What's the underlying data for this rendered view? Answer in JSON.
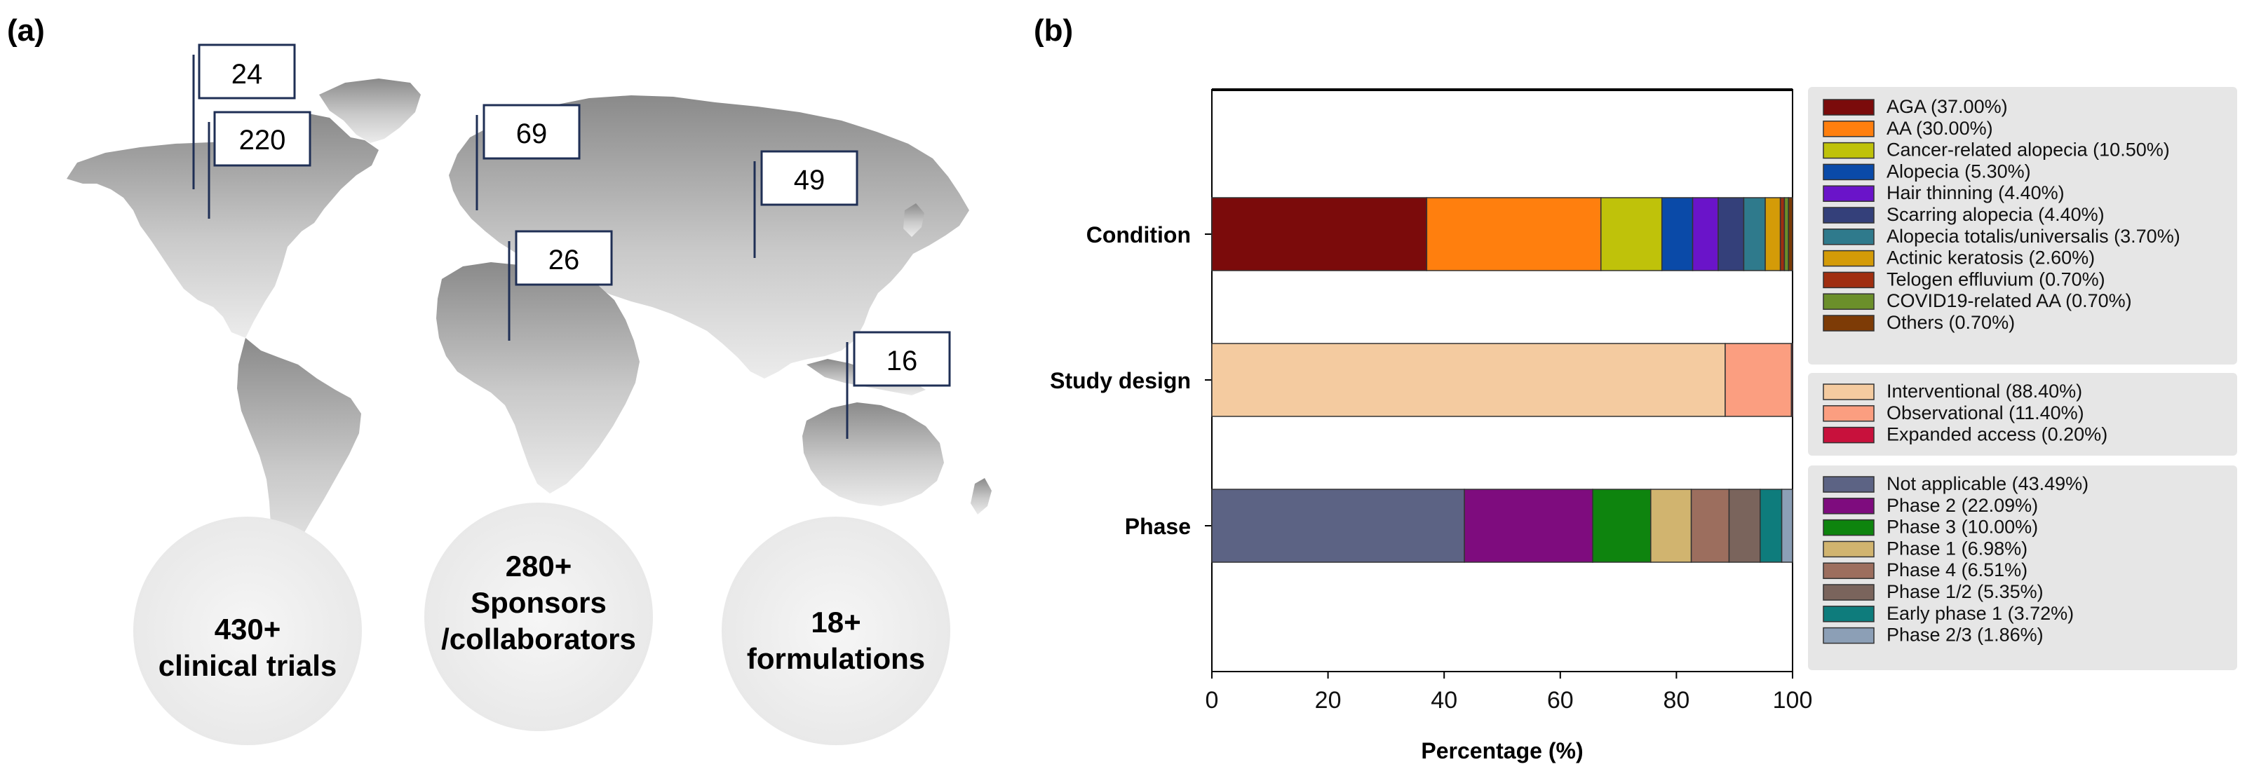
{
  "panel_a": {
    "label": "(a)",
    "flags": [
      {
        "value": "24"
      },
      {
        "value": "220"
      },
      {
        "value": "69"
      },
      {
        "value": "49"
      },
      {
        "value": "26"
      },
      {
        "value": "16"
      }
    ],
    "stats": [
      {
        "lines": [
          "430+",
          "clinical trials"
        ]
      },
      {
        "lines": [
          "280+",
          "Sponsors",
          "/collaborators"
        ]
      },
      {
        "lines": [
          "18+",
          "formulations"
        ]
      }
    ],
    "colors": {
      "map_top": "#8c8c8c",
      "map_bottom": "#e6e6e6",
      "flag_stroke": "#1f2f55",
      "stat_circle": "#efefef"
    }
  },
  "panel_b": {
    "label": "(b)"
  },
  "chart_data": {
    "type": "bar",
    "orientation": "horizontal",
    "stacked": true,
    "xlabel": "Percentage (%)",
    "ylabel": "",
    "xlim": [
      0,
      100
    ],
    "xticks": [
      0,
      20,
      40,
      60,
      80,
      100
    ],
    "categories": [
      "Condition",
      "Study design",
      "Phase"
    ],
    "groups": [
      {
        "category": "Condition",
        "segments": [
          {
            "name": "AGA (37.00%)",
            "value": 37.0,
            "color": "#7b0b0b"
          },
          {
            "name": "AA (30.00%)",
            "value": 30.0,
            "color": "#ff7f0e"
          },
          {
            "name": "Cancer-related alopecia (10.50%)",
            "value": 10.5,
            "color": "#bfc20a"
          },
          {
            "name": "Alopecia (5.30%)",
            "value": 5.3,
            "color": "#0a4aa8"
          },
          {
            "name": "Hair thinning (4.40%)",
            "value": 4.4,
            "color": "#6a14c9"
          },
          {
            "name": "Scarring alopecia (4.40%)",
            "value": 4.4,
            "color": "#34407a"
          },
          {
            "name": "Alopecia totalis/universalis (3.70%)",
            "value": 3.7,
            "color": "#2f7a8c"
          },
          {
            "name": "Actinic keratosis (2.60%)",
            "value": 2.6,
            "color": "#d49b08"
          },
          {
            "name": "Telogen effluvium (0.70%)",
            "value": 0.7,
            "color": "#a02e10"
          },
          {
            "name": "COVID19-related AA (0.70%)",
            "value": 0.7,
            "color": "#6b8f2a"
          },
          {
            "name": "Others (0.70%)",
            "value": 0.7,
            "color": "#7d3b06"
          }
        ]
      },
      {
        "category": "Study design",
        "segments": [
          {
            "name": "Interventional (88.40%)",
            "value": 88.4,
            "color": "#f4cba0"
          },
          {
            "name": "Observational (11.40%)",
            "value": 11.4,
            "color": "#fb9e80"
          },
          {
            "name": "Expanded access (0.20%)",
            "value": 0.2,
            "color": "#c8113c"
          }
        ]
      },
      {
        "category": "Phase",
        "segments": [
          {
            "name": "Not applicable (43.49%)",
            "value": 43.49,
            "color": "#5c6384"
          },
          {
            "name": "Phase 2 (22.09%)",
            "value": 22.09,
            "color": "#7e0c7e"
          },
          {
            "name": "Phase 3 (10.00%)",
            "value": 10.0,
            "color": "#0e840e"
          },
          {
            "name": "Phase 1 (6.98%)",
            "value": 6.98,
            "color": "#d1b46f"
          },
          {
            "name": "Phase 4 (6.51%)",
            "value": 6.51,
            "color": "#9c6e5e"
          },
          {
            "name": "Phase 1/2 (5.35%)",
            "value": 5.35,
            "color": "#7a645c"
          },
          {
            "name": "Early phase 1 (3.72%)",
            "value": 3.72,
            "color": "#0e7c7c"
          },
          {
            "name": "Phase 2/3 (1.86%)",
            "value": 1.86,
            "color": "#8c9fb6"
          }
        ]
      }
    ],
    "legend_placement": "right"
  }
}
